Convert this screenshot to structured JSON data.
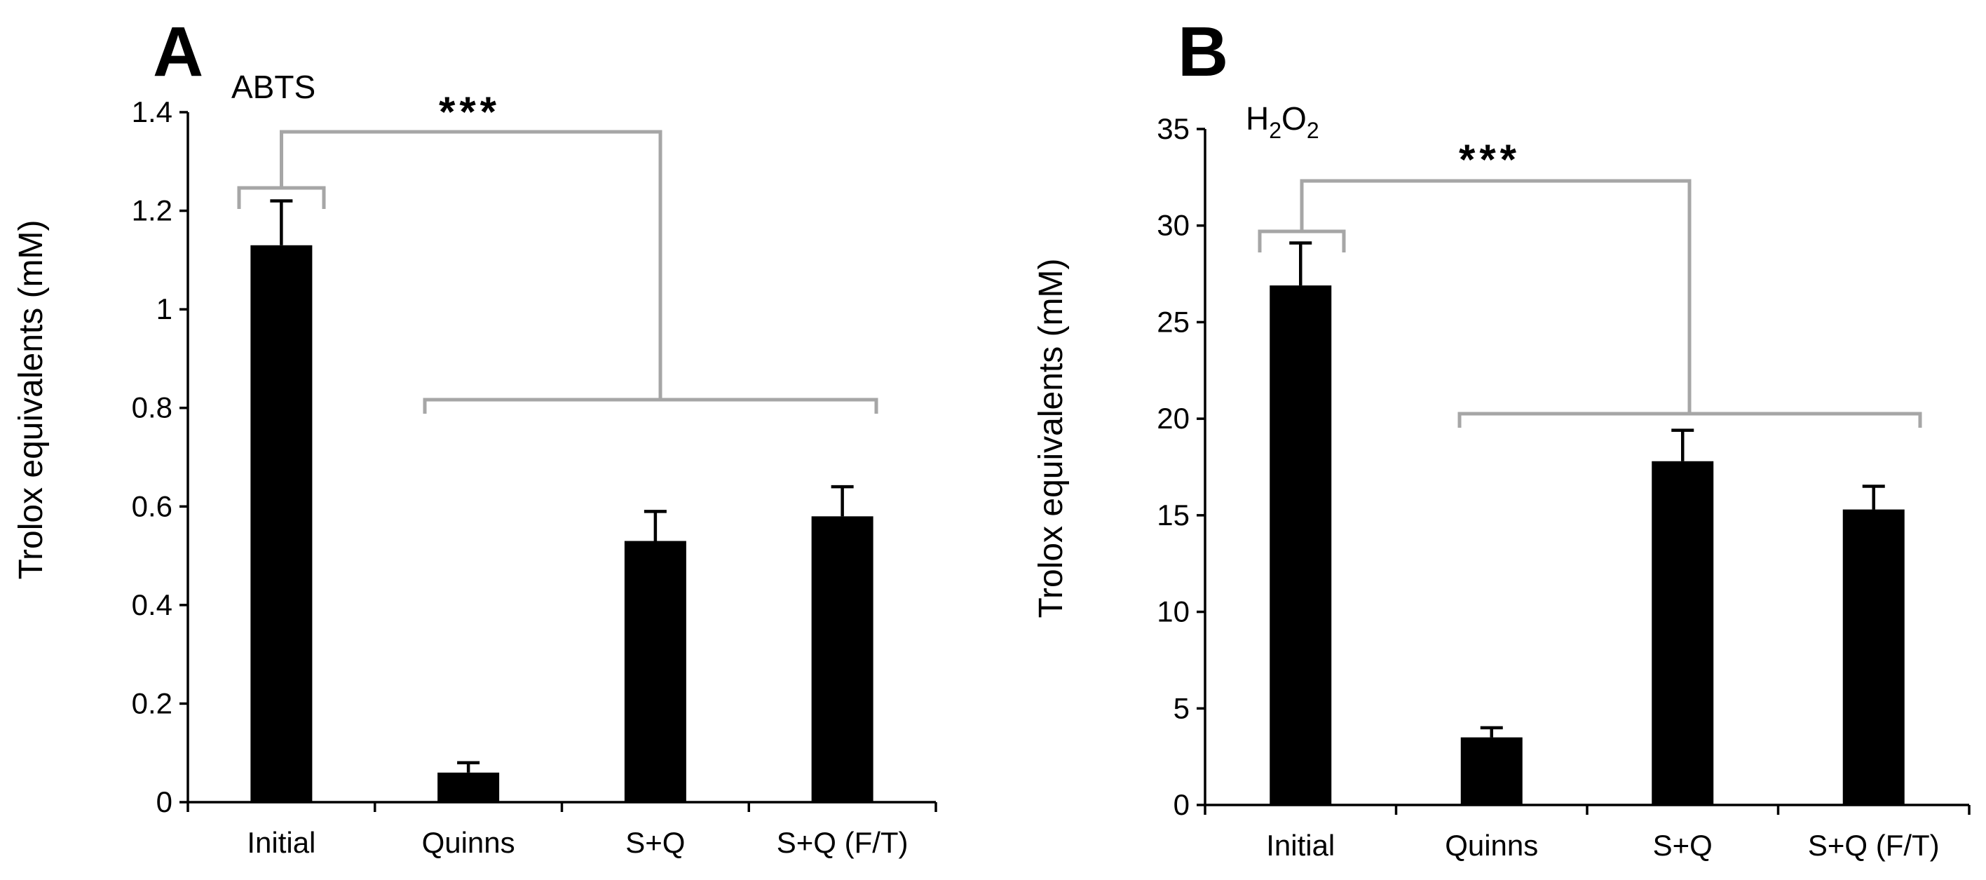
{
  "chart_data": [
    {
      "type": "bar",
      "panel_label": "A",
      "title": "ABTS",
      "ylabel": "Trolox equivalents (mM)",
      "xlabel": "",
      "categories": [
        "Initial",
        "Quinns",
        "S+Q",
        "S+Q (F/T)"
      ],
      "values": [
        1.13,
        0.06,
        0.53,
        0.58
      ],
      "errors": [
        0.09,
        0.02,
        0.06,
        0.06
      ],
      "ylim": [
        0,
        1.4
      ],
      "yticks": [
        "0",
        "0.2",
        "0.4",
        "0.6",
        "0.8",
        "1",
        "1.2",
        "1.4"
      ],
      "significance": "***",
      "bar_color": "#000000",
      "bracket_color": "#a6a6a6"
    },
    {
      "type": "bar",
      "panel_label": "B",
      "title": "H2O2",
      "title_parts": [
        "H",
        "2",
        "O",
        "2"
      ],
      "ylabel": "Trolox equivalents (mM)",
      "xlabel": "",
      "categories": [
        "Initial",
        "Quinns",
        "S+Q",
        "S+Q (F/T)"
      ],
      "values": [
        26.9,
        3.5,
        17.8,
        15.3
      ],
      "errors": [
        2.2,
        0.5,
        1.6,
        1.2
      ],
      "ylim": [
        0,
        35
      ],
      "yticks": [
        "0",
        "5",
        "10",
        "15",
        "20",
        "25",
        "30",
        "35"
      ],
      "significance": "***",
      "bar_color": "#000000",
      "bracket_color": "#a6a6a6"
    }
  ]
}
